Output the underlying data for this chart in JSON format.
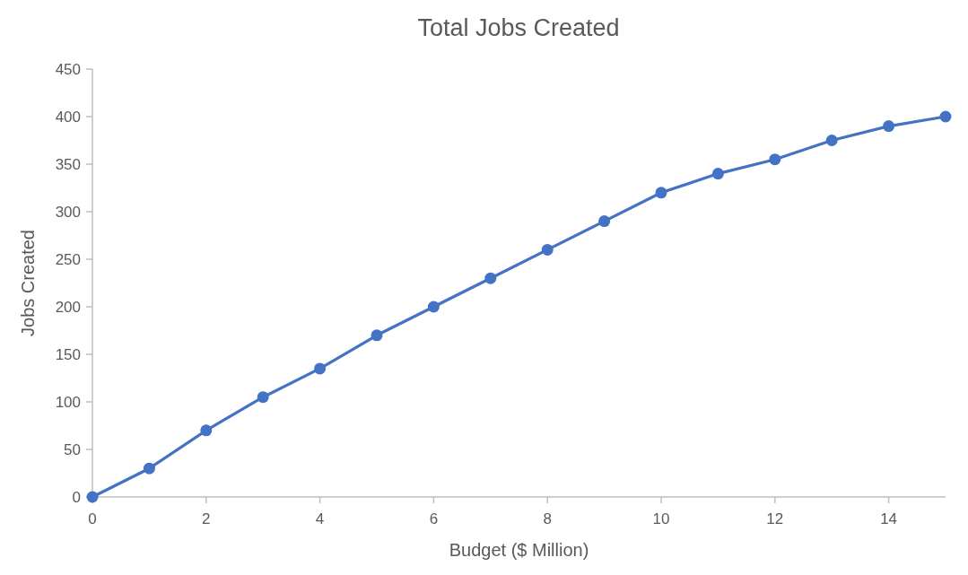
{
  "chart_data": {
    "type": "line",
    "title": "Total Jobs Created",
    "xlabel": "Budget ($ Million)",
    "ylabel": "Jobs Created",
    "x": [
      0,
      1,
      2,
      3,
      4,
      5,
      6,
      7,
      8,
      9,
      10,
      11,
      12,
      13,
      14,
      15
    ],
    "series": [
      {
        "color": "#4472c4",
        "values": [
          0,
          30,
          70,
          105,
          135,
          170,
          200,
          230,
          260,
          290,
          320,
          340,
          355,
          375,
          390,
          400
        ]
      }
    ],
    "xlim": [
      0,
      15
    ],
    "xticks": [
      0,
      2,
      4,
      6,
      8,
      10,
      12,
      14
    ],
    "ylim": [
      0,
      450
    ],
    "yticks": [
      0,
      50,
      100,
      150,
      200,
      250,
      300,
      350,
      400,
      450
    ],
    "grid": false,
    "marker": "circle",
    "line_style": "solid"
  }
}
